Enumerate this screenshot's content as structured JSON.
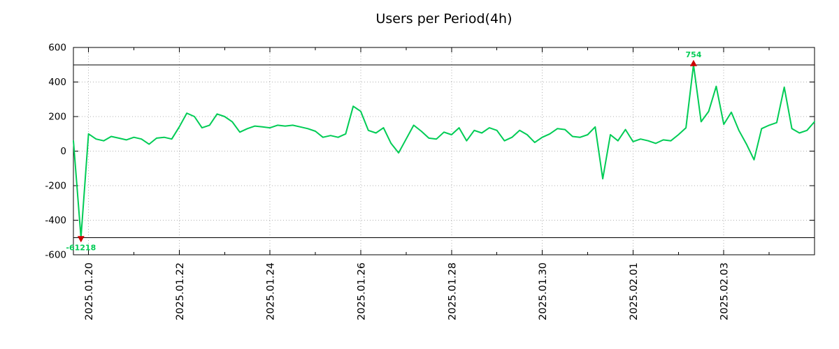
{
  "chart_data": {
    "type": "line",
    "title": "Users per Period(4h)",
    "xlabel": "",
    "ylabel": "",
    "ylim": [
      -600,
      600
    ],
    "y_ticks": [
      -600,
      -400,
      -200,
      0,
      200,
      400,
      600
    ],
    "x_tick_labels": [
      "2025.01.20",
      "2025.01.22",
      "2025.01.24",
      "2025.01.26",
      "2025.01.28",
      "2025.01.30",
      "2025.02.01",
      "2025.02.03"
    ],
    "x_tick_indices": [
      2,
      14,
      26,
      38,
      50,
      62,
      74,
      86
    ],
    "x_step_hours": 4,
    "threshold_lines": [
      500,
      -500
    ],
    "clip": {
      "min": -500,
      "max": 500
    },
    "grid": {
      "show": true,
      "style": "dotted",
      "color": "#b0b0b0"
    },
    "axis_color": "#000000",
    "series": [
      {
        "name": "users",
        "color": "#00cc55",
        "values": [
          60,
          -500,
          100,
          70,
          60,
          85,
          75,
          65,
          80,
          70,
          40,
          75,
          80,
          70,
          140,
          220,
          200,
          135,
          150,
          215,
          200,
          170,
          110,
          130,
          145,
          140,
          135,
          150,
          145,
          150,
          140,
          130,
          115,
          80,
          90,
          80,
          100,
          260,
          230,
          120,
          105,
          135,
          45,
          -10,
          70,
          150,
          115,
          75,
          70,
          110,
          95,
          135,
          60,
          120,
          105,
          135,
          120,
          60,
          80,
          120,
          95,
          50,
          80,
          100,
          130,
          125,
          85,
          80,
          95,
          140,
          -160,
          95,
          60,
          125,
          55,
          70,
          60,
          45,
          65,
          60,
          95,
          135,
          500,
          170,
          230,
          375,
          155,
          225,
          120,
          40,
          -50,
          130,
          150,
          165,
          370,
          130,
          105,
          120,
          170
        ]
      }
    ],
    "annotations": [
      {
        "index": 1,
        "value_label": "-61218",
        "marker": "triangle-down",
        "marker_color": "#cc0000",
        "label_color": "#00cc55"
      },
      {
        "index": 82,
        "value_label": "754",
        "marker": "triangle-up",
        "marker_color": "#cc0000",
        "label_color": "#00cc55"
      }
    ]
  }
}
